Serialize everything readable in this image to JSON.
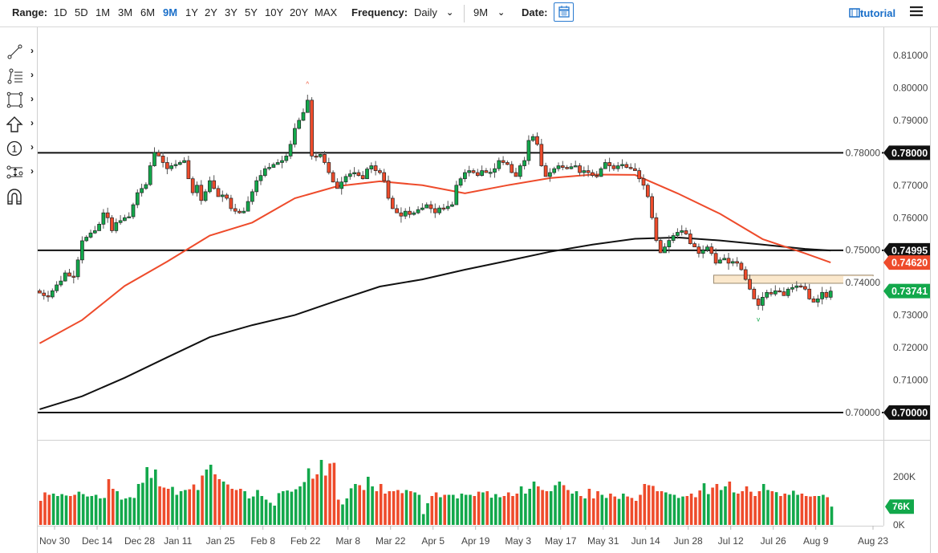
{
  "toolbar": {
    "range_label": "Range:",
    "ranges": [
      "1D",
      "5D",
      "1M",
      "3M",
      "6M",
      "9M",
      "1Y",
      "2Y",
      "3Y",
      "5Y",
      "10Y",
      "20Y",
      "MAX"
    ],
    "active_range": "9M",
    "frequency_label": "Frequency:",
    "frequency_value": "Daily",
    "period_value": "9M",
    "date_label": "Date:",
    "tutorial_label": "tutorial"
  },
  "left_tools": [
    "line-tool",
    "fib-tool",
    "rectangle-tool",
    "arrow-tool",
    "number-marker-tool",
    "measure-tool",
    "magnet-tool"
  ],
  "colors": {
    "up": "#12a84b",
    "down": "#ee4b2b",
    "ma_fast": "#ee4b2b",
    "ma_slow": "#111111",
    "zone": "#fbe8cc"
  },
  "chart_data": {
    "type": "candlestick",
    "ylim": [
      0.7,
      0.81
    ],
    "y_ticks": [
      "0.70000",
      "0.71000",
      "0.72000",
      "0.73000",
      "0.74000",
      "0.75000",
      "0.76000",
      "0.77000",
      "0.78000",
      "0.79000",
      "0.80000",
      "0.81000"
    ],
    "x_ticks": [
      {
        "label": "Nov 30",
        "index": 2
      },
      {
        "label": "Dec 14",
        "index": 12
      },
      {
        "label": "Dec 28",
        "index": 22
      },
      {
        "label": "Jan 11",
        "index": 31
      },
      {
        "label": "Jan 25",
        "index": 41
      },
      {
        "label": "Feb 8",
        "index": 51
      },
      {
        "label": "Feb 22",
        "index": 61
      },
      {
        "label": "Mar 8",
        "index": 71
      },
      {
        "label": "Mar 22",
        "index": 81
      },
      {
        "label": "Apr 5",
        "index": 91
      },
      {
        "label": "Apr 19",
        "index": 101
      },
      {
        "label": "May 3",
        "index": 111
      },
      {
        "label": "May 17",
        "index": 121
      },
      {
        "label": "May 31",
        "index": 131
      },
      {
        "label": "Jun 14",
        "index": 141
      },
      {
        "label": "Jun 28",
        "index": 151
      },
      {
        "label": "Jul 12",
        "index": 161
      },
      {
        "label": "Jul 26",
        "index": 171
      },
      {
        "label": "Aug 9",
        "index": 181
      },
      {
        "label": "Aug 23",
        "index": 195
      }
    ],
    "first_open": 0.7375,
    "closes": [
      0.7368,
      0.736,
      0.7356,
      0.7375,
      0.7393,
      0.7405,
      0.743,
      0.742,
      0.7418,
      0.747,
      0.7529,
      0.754,
      0.7553,
      0.756,
      0.758,
      0.7615,
      0.76,
      0.756,
      0.7585,
      0.7591,
      0.76,
      0.7603,
      0.764,
      0.7677,
      0.769,
      0.7702,
      0.776,
      0.7801,
      0.779,
      0.777,
      0.7751,
      0.776,
      0.7764,
      0.777,
      0.7776,
      0.772,
      0.7677,
      0.77,
      0.7653,
      0.768,
      0.7714,
      0.769,
      0.7665,
      0.767,
      0.766,
      0.7628,
      0.762,
      0.7615,
      0.762,
      0.765,
      0.768,
      0.7714,
      0.773,
      0.7751,
      0.7755,
      0.7764,
      0.777,
      0.7776,
      0.779,
      0.7826,
      0.7875,
      0.79,
      0.7924,
      0.7962,
      0.779,
      0.7788,
      0.7795,
      0.777,
      0.7739,
      0.771,
      0.769,
      0.771,
      0.7727,
      0.7735,
      0.7739,
      0.773,
      0.772,
      0.775,
      0.776,
      0.7745,
      0.7739,
      0.7714,
      0.766,
      0.7628,
      0.7615,
      0.7605,
      0.762,
      0.761,
      0.7615,
      0.7625,
      0.763,
      0.764,
      0.7628,
      0.7615,
      0.763,
      0.7628,
      0.7635,
      0.764,
      0.77,
      0.772,
      0.7739,
      0.7745,
      0.7739,
      0.773,
      0.7745,
      0.7739,
      0.774,
      0.7751,
      0.7776,
      0.777,
      0.7764,
      0.7739,
      0.7727,
      0.776,
      0.7776,
      0.7838,
      0.785,
      0.7826,
      0.776,
      0.7727,
      0.7739,
      0.7751,
      0.776,
      0.7755,
      0.7751,
      0.7757,
      0.776,
      0.7739,
      0.7745,
      0.7739,
      0.773,
      0.7727,
      0.7751,
      0.777,
      0.776,
      0.7751,
      0.776,
      0.7764,
      0.7755,
      0.7751,
      0.7745,
      0.772,
      0.77,
      0.7665,
      0.76,
      0.753,
      0.7492,
      0.751,
      0.753,
      0.7545,
      0.7555,
      0.756,
      0.755,
      0.752,
      0.751,
      0.749,
      0.75,
      0.751,
      0.749,
      0.746,
      0.747,
      0.7475,
      0.746,
      0.7465,
      0.746,
      0.744,
      0.741,
      0.738,
      0.735,
      0.733,
      0.7355,
      0.737,
      0.7365,
      0.7375,
      0.7372,
      0.736,
      0.738,
      0.7385,
      0.739,
      0.7388,
      0.738,
      0.735,
      0.734,
      0.735,
      0.737,
      0.7355,
      0.7374
    ],
    "volume_k": [
      100,
      135,
      125,
      130,
      120,
      128,
      122,
      120,
      125,
      138,
      128,
      118,
      120,
      125,
      110,
      112,
      190,
      150,
      140,
      105,
      110,
      115,
      112,
      170,
      175,
      240,
      195,
      230,
      160,
      155,
      150,
      158,
      125,
      140,
      145,
      148,
      168,
      145,
      205,
      230,
      250,
      210,
      190,
      180,
      168,
      150,
      145,
      150,
      140,
      110,
      118,
      145,
      120,
      105,
      92,
      80,
      132,
      140,
      143,
      138,
      148,
      160,
      178,
      235,
      192,
      210,
      270,
      205,
      255,
      258,
      105,
      85,
      110,
      152,
      170,
      165,
      145,
      200,
      160,
      140,
      170,
      130,
      140,
      140,
      145,
      132,
      145,
      140,
      135,
      125,
      45,
      90,
      120,
      135,
      115,
      125,
      125,
      125,
      110,
      130,
      125,
      125,
      120,
      138,
      135,
      140,
      113,
      128,
      115,
      120,
      135,
      120,
      130,
      160,
      130,
      150,
      180,
      160,
      145,
      140,
      140,
      165,
      180,
      165,
      145,
      130,
      140,
      120,
      110,
      150,
      110,
      140,
      125,
      112,
      130,
      118,
      108,
      130,
      118,
      112,
      100,
      125,
      170,
      165,
      162,
      140,
      140,
      135,
      128,
      125,
      112,
      118,
      120,
      130,
      115,
      143,
      173,
      128,
      155,
      170,
      145,
      160,
      180,
      135,
      130,
      140,
      160,
      138,
      120,
      140,
      170,
      145,
      140,
      136,
      120,
      130,
      125,
      142,
      125,
      130,
      120,
      118,
      120,
      120,
      125,
      115,
      76
    ],
    "volume_ticks": [
      "0K",
      "200K"
    ],
    "volume_ylim_k": [
      0,
      200
    ],
    "last_volume_label": "76K",
    "ma_fast": {
      "indices": [
        0,
        10,
        20,
        30,
        40,
        50,
        60,
        70,
        80,
        90,
        100,
        110,
        120,
        130,
        140,
        150,
        160,
        170,
        180,
        186
      ],
      "values": [
        0.7213,
        0.7285,
        0.739,
        0.7465,
        0.7545,
        0.7585,
        0.766,
        0.7697,
        0.7712,
        0.77,
        0.7675,
        0.77,
        0.7722,
        0.7733,
        0.7732,
        0.7675,
        0.7612,
        0.7534,
        0.749,
        0.7462
      ]
    },
    "ma_slow": {
      "indices": [
        0,
        10,
        20,
        30,
        40,
        50,
        60,
        70,
        80,
        90,
        100,
        110,
        120,
        130,
        140,
        150,
        160,
        170,
        180,
        186
      ],
      "values": [
        0.701,
        0.705,
        0.7107,
        0.717,
        0.7232,
        0.7269,
        0.73,
        0.7345,
        0.7388,
        0.741,
        0.744,
        0.7467,
        0.7495,
        0.7517,
        0.7535,
        0.7539,
        0.753,
        0.7517,
        0.7504,
        0.7499
      ]
    },
    "horizontal_lines": [
      0.78,
      0.74995,
      0.7
    ],
    "zone": {
      "from_index": 158.5,
      "to_index": 196,
      "low": 0.7398,
      "high": 0.7423
    },
    "badges": [
      {
        "label": "0.78000",
        "price": 0.78,
        "color": "#111111"
      },
      {
        "label": "0.74995",
        "price": 0.74995,
        "color": "#111111"
      },
      {
        "label": "0.74620",
        "price": 0.7462,
        "color": "#ee4b2b"
      },
      {
        "label": "0.73741",
        "price": 0.73741,
        "color": "#12a84b"
      },
      {
        "label": "0.70000",
        "price": 0.7,
        "color": "#111111"
      }
    ],
    "high_marker_index": 63,
    "low_marker_index": 169
  }
}
